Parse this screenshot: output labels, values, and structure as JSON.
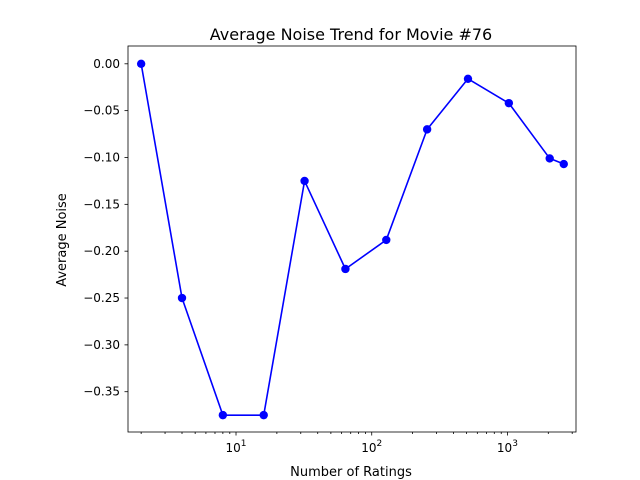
{
  "chart_data": {
    "type": "line",
    "title": "Average Noise Trend for Movie #76",
    "xlabel": "Number of Ratings",
    "ylabel": "Average Noise",
    "xscale": "log",
    "xlim": [
      1.6,
      3200
    ],
    "ylim": [
      -0.393,
      0.019
    ],
    "grid": false,
    "x_ticks": [
      {
        "base": "10",
        "exp": "1",
        "value": 10
      },
      {
        "base": "10",
        "exp": "2",
        "value": 100
      },
      {
        "base": "10",
        "exp": "3",
        "value": 1000
      }
    ],
    "y_ticks": [
      {
        "label": "0.00",
        "value": 0.0
      },
      {
        "label": "−0.05",
        "value": -0.05
      },
      {
        "label": "−0.10",
        "value": -0.1
      },
      {
        "label": "−0.15",
        "value": -0.15
      },
      {
        "label": "−0.20",
        "value": -0.2
      },
      {
        "label": "−0.25",
        "value": -0.25
      },
      {
        "label": "−0.30",
        "value": -0.3
      },
      {
        "label": "−0.35",
        "value": -0.35
      }
    ],
    "series": [
      {
        "color": "#0000ff",
        "marker": "circle",
        "points": [
          {
            "x": 2,
            "y": 0.0
          },
          {
            "x": 4,
            "y": -0.25
          },
          {
            "x": 8,
            "y": -0.375
          },
          {
            "x": 16,
            "y": -0.375
          },
          {
            "x": 32,
            "y": -0.125
          },
          {
            "x": 64,
            "y": -0.219
          },
          {
            "x": 128,
            "y": -0.188
          },
          {
            "x": 256,
            "y": -0.07
          },
          {
            "x": 512,
            "y": -0.016
          },
          {
            "x": 1024,
            "y": -0.042
          },
          {
            "x": 2048,
            "y": -0.101
          },
          {
            "x": 2600,
            "y": -0.107
          }
        ]
      }
    ]
  }
}
